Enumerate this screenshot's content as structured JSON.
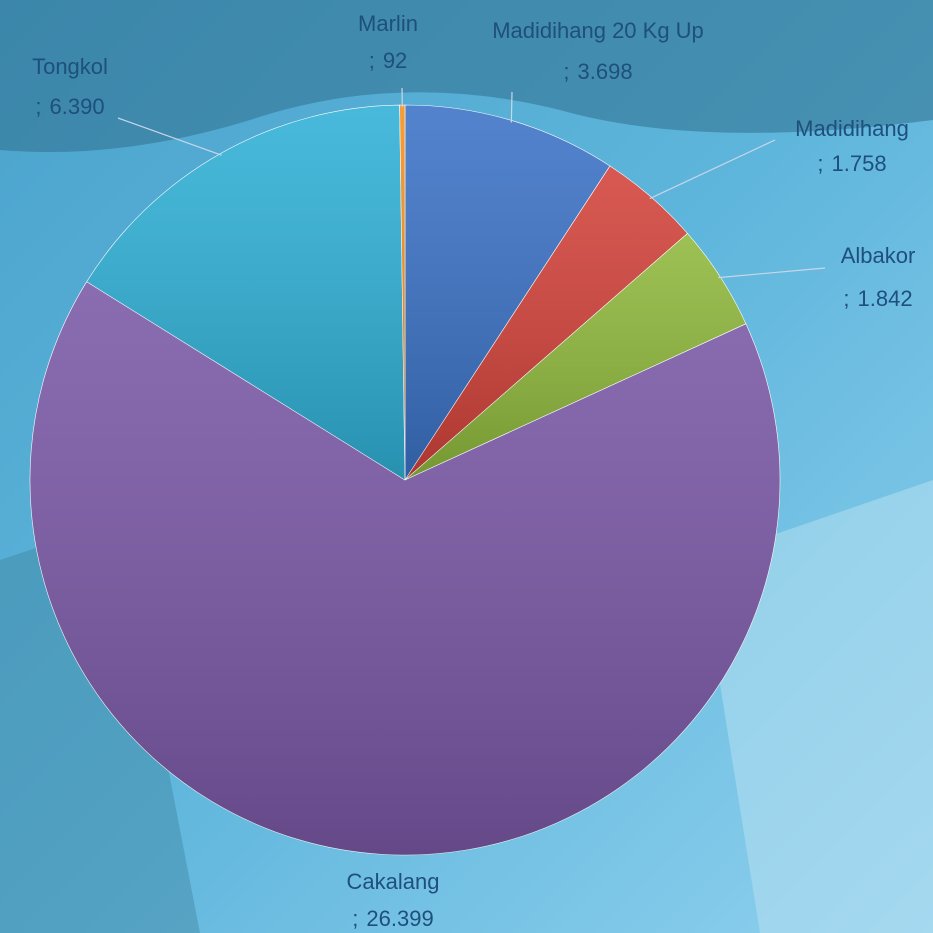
{
  "chart_data": {
    "type": "pie",
    "categories": [
      "Madidihang 20 Kg Up",
      "Madidihang",
      "Albakor",
      "Cakalang",
      "Tongkol",
      "Marlin"
    ],
    "values": [
      3698,
      1758,
      1842,
      26399,
      6390,
      92
    ],
    "value_labels": [
      "3.698",
      "1.758",
      "1.842",
      "26.399",
      "6.390",
      "92"
    ],
    "separator": ";",
    "colors": [
      "#3b72c6",
      "#d2423a",
      "#8fb83c",
      "#7a58a6",
      "#2fb0d6",
      "#f5901e"
    ]
  }
}
